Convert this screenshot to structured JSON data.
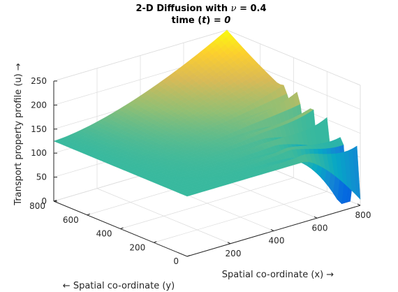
{
  "chart_data": {
    "type": "surface",
    "title_line1_prefix": "2-D Diffusion with ",
    "title_nu_symbol": "ν",
    "title_line1_suffix": " = 0.4",
    "title_line2_prefix": "time (",
    "title_line2_var": "t",
    "title_line2_mid": ") = ",
    "title_line2_value": "0",
    "xlabel": "Spatial co-ordinate (x) →",
    "ylabel": "← Spatial co-ordinate (y)",
    "zlabel": "Transport property profile (u) →",
    "xlim": [
      0,
      800
    ],
    "ylim": [
      0,
      800
    ],
    "zlim": [
      0,
      250
    ],
    "x_ticks": [
      "200",
      "400",
      "600",
      "800"
    ],
    "y_ticks": [
      "0",
      "200",
      "400",
      "600",
      "800"
    ],
    "z_ticks": [
      "0",
      "50",
      "100",
      "150",
      "200",
      "250"
    ],
    "colormap": "parula",
    "grid": true,
    "surface_description_values": {
      "base_level": 125,
      "max_level": 250,
      "min_level": 0,
      "grid_size": 41
    }
  }
}
